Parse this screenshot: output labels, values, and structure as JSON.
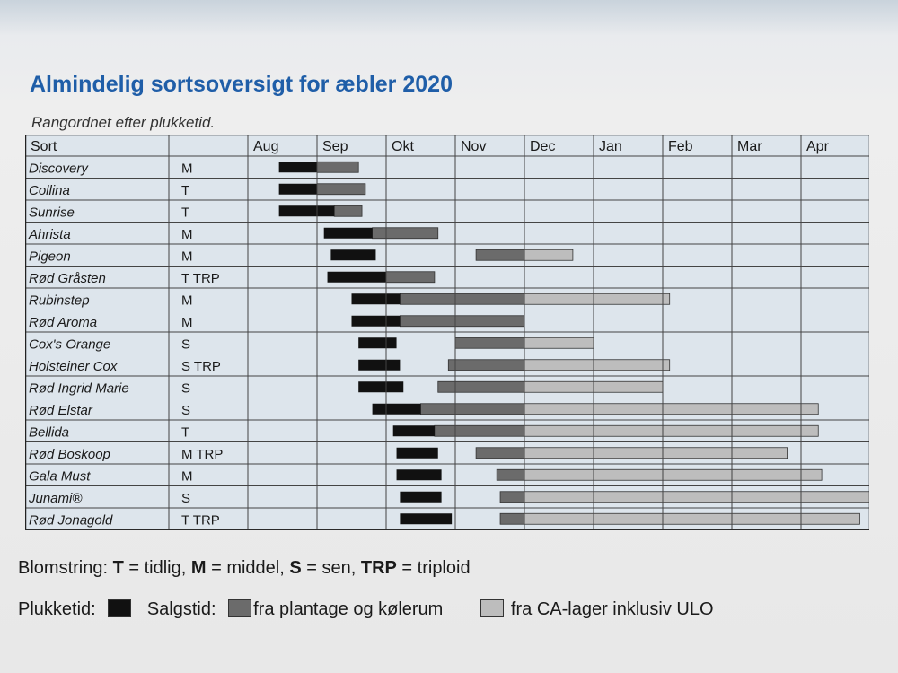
{
  "title": "Almindelig sortsoversigt for æbler 2020",
  "subtitle": "Rangordnet efter plukketid.",
  "colors": {
    "picking": "#111111",
    "sales_store": "#6b6b6b",
    "sales_ca": "#bdbdbd",
    "grid_bg": "#dde5ec",
    "grid_line": "#444444"
  },
  "chart_data": {
    "type": "gantt",
    "header_first": "Sort",
    "months": [
      "Aug",
      "Sep",
      "Okt",
      "Nov",
      "Dec",
      "Jan",
      "Feb",
      "Mar",
      "Apr"
    ],
    "units": "months from start of Aug (0 = 1 Aug, 1 = 1 Sep, ...)",
    "rows": [
      {
        "name": "Discovery",
        "code": "M",
        "pick": [
          0.45,
          1.0
        ],
        "store": [
          1.0,
          1.6
        ],
        "ca": null
      },
      {
        "name": "Collina",
        "code": "T",
        "pick": [
          0.45,
          1.0
        ],
        "store": [
          1.0,
          1.7
        ],
        "ca": null
      },
      {
        "name": "Sunrise",
        "code": "T",
        "pick": [
          0.45,
          1.25
        ],
        "store": [
          1.25,
          1.65
        ],
        "ca": null
      },
      {
        "name": "Ahrista",
        "code": "M",
        "pick": [
          1.1,
          1.8
        ],
        "store": [
          1.8,
          2.75
        ],
        "ca": null
      },
      {
        "name": "Pigeon",
        "code": "M",
        "pick": [
          1.2,
          1.85
        ],
        "store": [
          3.3,
          4.0
        ],
        "ca": [
          4.0,
          4.7
        ]
      },
      {
        "name": "Rød Gråsten",
        "code": "T  TRP",
        "pick": [
          1.15,
          2.0
        ],
        "store": [
          2.0,
          2.7
        ],
        "ca": null
      },
      {
        "name": "Rubinstep",
        "code": "M",
        "pick": [
          1.5,
          2.2
        ],
        "store": [
          2.2,
          4.0
        ],
        "ca": [
          4.0,
          6.1
        ]
      },
      {
        "name": "Rød Aroma",
        "code": "M",
        "pick": [
          1.5,
          2.2
        ],
        "store": [
          2.2,
          4.0
        ],
        "ca": null
      },
      {
        "name": "Cox's Orange",
        "code": "S",
        "pick": [
          1.6,
          2.15
        ],
        "store": [
          3.0,
          4.0
        ],
        "ca": [
          4.0,
          5.0
        ]
      },
      {
        "name": "Holsteiner Cox",
        "code": "S  TRP",
        "pick": [
          1.6,
          2.2
        ],
        "store": [
          2.9,
          4.0
        ],
        "ca": [
          4.0,
          6.1
        ]
      },
      {
        "name": "Rød Ingrid Marie",
        "code": "S",
        "pick": [
          1.6,
          2.25
        ],
        "store": [
          2.75,
          4.0
        ],
        "ca": [
          4.0,
          6.0
        ]
      },
      {
        "name": "Rød Elstar",
        "code": "S",
        "pick": [
          1.8,
          2.5
        ],
        "store": [
          2.5,
          4.0
        ],
        "ca": [
          4.0,
          8.25
        ]
      },
      {
        "name": "Bellida",
        "code": "T",
        "pick": [
          2.1,
          2.7
        ],
        "store": [
          2.7,
          4.0
        ],
        "ca": [
          4.0,
          8.25
        ]
      },
      {
        "name": "Rød Boskoop",
        "code": "M  TRP",
        "pick": [
          2.15,
          2.75
        ],
        "store": [
          3.3,
          4.0
        ],
        "ca": [
          4.0,
          7.8
        ]
      },
      {
        "name": "Gala Must",
        "code": "M",
        "pick": [
          2.15,
          2.8
        ],
        "store": [
          3.6,
          4.0
        ],
        "ca": [
          4.0,
          8.3
        ]
      },
      {
        "name": "Junami®",
        "code": "S",
        "pick": [
          2.2,
          2.8
        ],
        "store": [
          3.65,
          4.0
        ],
        "ca": [
          4.0,
          9.5
        ]
      },
      {
        "name": "Rød Jonagold",
        "code": "T  TRP",
        "pick": [
          2.2,
          2.95
        ],
        "store": [
          3.65,
          4.0
        ],
        "ca": [
          4.0,
          8.85
        ]
      }
    ]
  },
  "legend": {
    "bloom_prefix": "Blomstring: ",
    "t_key": "T",
    "t_desc": " = tidlig, ",
    "m_key": "M",
    "m_desc": " = middel, ",
    "s_key": "S",
    "s_desc": " = sen, ",
    "trp_key": "TRP",
    "trp_desc": " = triploid",
    "pick_label": "Plukketid:",
    "sales_label": "Salgstid:",
    "store_label": "fra plantage og kølerum",
    "ca_label": "fra CA-lager inklusiv ULO"
  }
}
